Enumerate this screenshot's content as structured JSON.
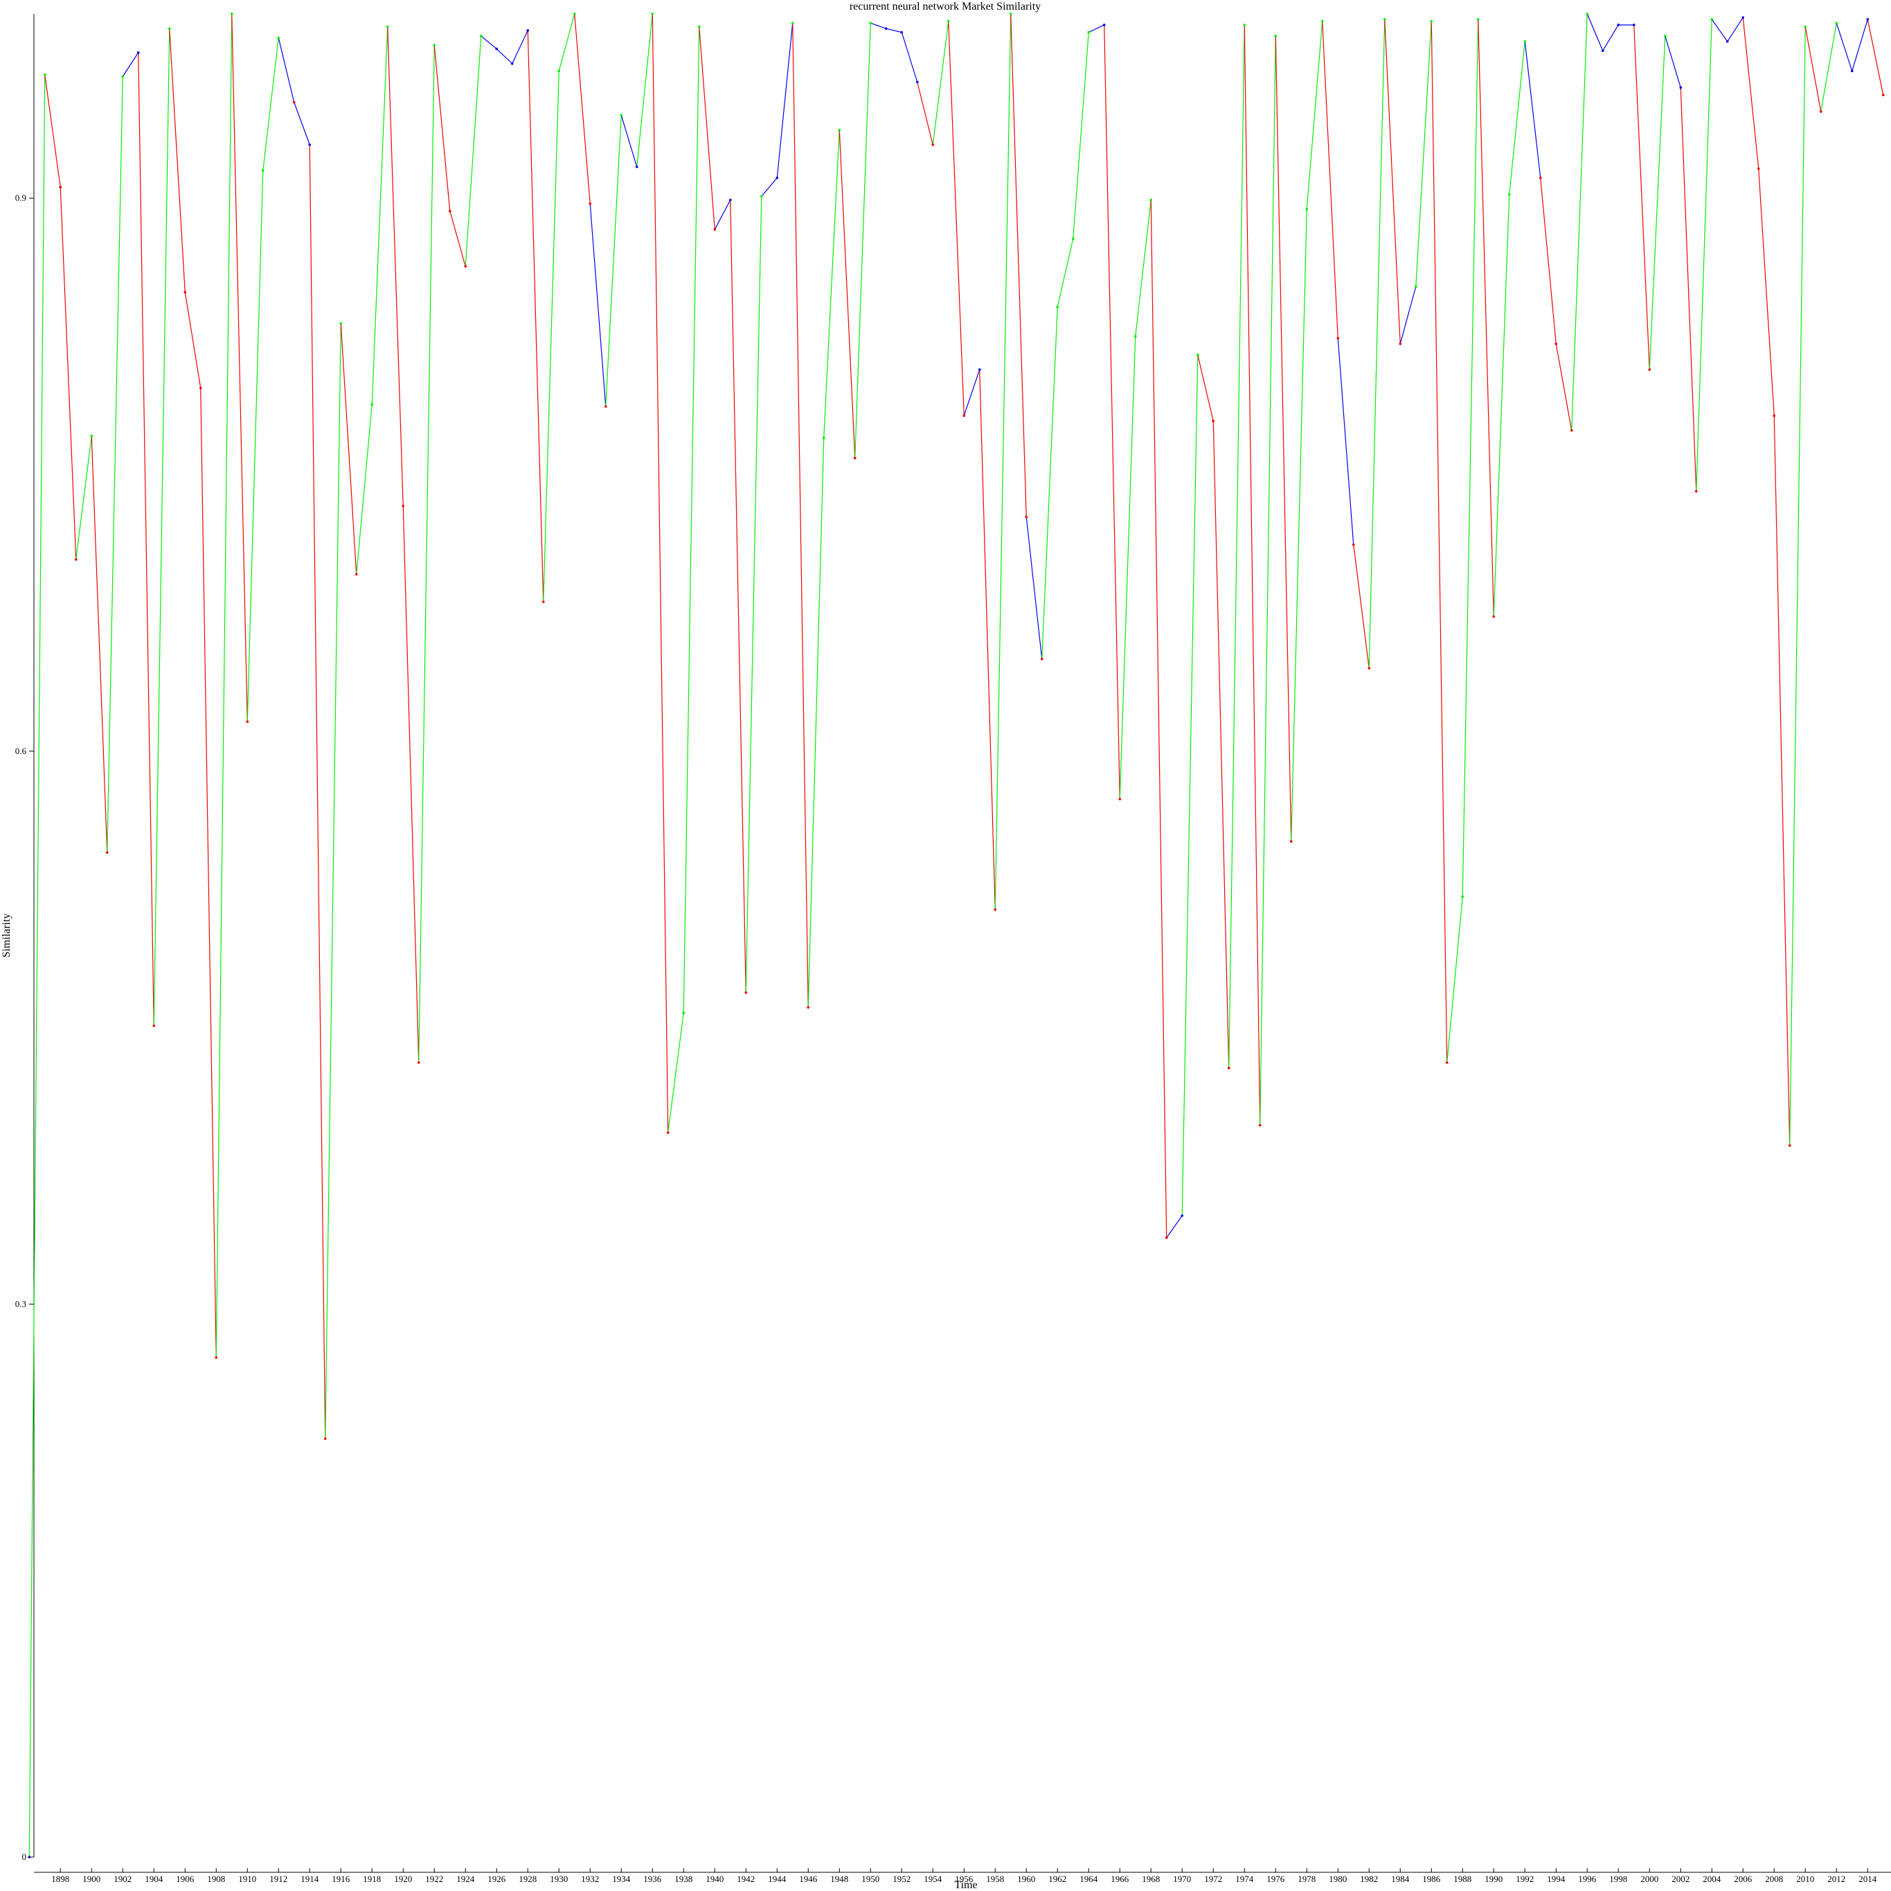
{
  "chart_data": {
    "type": "line",
    "title": "recurrent neural network Market Similarity",
    "xlabel": "Time",
    "ylabel": "Similarity",
    "xlim": [
      1895.9,
      2015.5
    ],
    "ylim": [
      0,
      1.0
    ],
    "x_ticks": [
      1898,
      1900,
      1902,
      1904,
      1906,
      1908,
      1910,
      1912,
      1914,
      1916,
      1918,
      1920,
      1922,
      1924,
      1926,
      1928,
      1930,
      1932,
      1934,
      1936,
      1938,
      1940,
      1942,
      1944,
      1946,
      1948,
      1950,
      1952,
      1954,
      1956,
      1958,
      1960,
      1962,
      1964,
      1966,
      1968,
      1970,
      1972,
      1974,
      1976,
      1978,
      1980,
      1982,
      1984,
      1986,
      1988,
      1990,
      1992,
      1994,
      1996,
      1998,
      2000,
      2002,
      2004,
      2006,
      2008,
      2010,
      2012,
      2014
    ],
    "y_ticks": [
      0,
      0.3,
      0.6,
      0.9
    ],
    "grid": false,
    "legend": "none",
    "segment_colors": {
      "up": "#00ee00",
      "down": "#ee0000",
      "flat": "#0000ee"
    },
    "x": [
      1896,
      1897,
      1898,
      1899,
      1900,
      1901,
      1902,
      1903,
      1904,
      1905,
      1906,
      1907,
      1908,
      1909,
      1910,
      1911,
      1912,
      1913,
      1914,
      1915,
      1916,
      1917,
      1918,
      1919,
      1920,
      1921,
      1922,
      1923,
      1924,
      1925,
      1926,
      1927,
      1928,
      1929,
      1930,
      1931,
      1932,
      1933,
      1934,
      1935,
      1936,
      1937,
      1938,
      1939,
      1940,
      1941,
      1942,
      1943,
      1944,
      1945,
      1946,
      1947,
      1948,
      1949,
      1950,
      1951,
      1952,
      1953,
      1954,
      1955,
      1956,
      1957,
      1958,
      1959,
      1960,
      1961,
      1962,
      1963,
      1964,
      1965,
      1966,
      1967,
      1968,
      1969,
      1970,
      1971,
      1972,
      1973,
      1974,
      1975,
      1976,
      1977,
      1978,
      1979,
      1980,
      1981,
      1982,
      1983,
      1984,
      1985,
      1986,
      1987,
      1988,
      1989,
      1990,
      1991,
      1992,
      1993,
      1994,
      1995,
      1996,
      1997,
      1998,
      1999,
      2000,
      2001,
      2002,
      2003,
      2004,
      2005,
      2006,
      2007,
      2008,
      2009,
      2010,
      2011,
      2012,
      2013,
      2014,
      2015
    ],
    "y": [
      0.0,
      0.967,
      0.906,
      0.704,
      0.771,
      0.545,
      0.966,
      0.979,
      0.451,
      0.992,
      0.849,
      0.797,
      0.271,
      1.0,
      0.616,
      0.915,
      0.987,
      0.952,
      0.929,
      0.227,
      0.832,
      0.696,
      0.788,
      0.993,
      0.733,
      0.431,
      0.983,
      0.893,
      0.863,
      0.988,
      0.981,
      0.973,
      0.991,
      0.681,
      0.969,
      1.0,
      0.897,
      0.787,
      0.945,
      0.917,
      1.0,
      0.393,
      0.458,
      0.993,
      0.883,
      0.899,
      0.469,
      0.901,
      0.911,
      0.995,
      0.461,
      0.77,
      0.937,
      0.759,
      0.995,
      0.992,
      0.99,
      0.963,
      0.929,
      0.996,
      0.782,
      0.807,
      0.514,
      1.0,
      0.727,
      0.65,
      0.841,
      0.878,
      0.99,
      0.994,
      0.574,
      0.825,
      0.899,
      0.336,
      0.348,
      0.815,
      0.779,
      0.428,
      0.994,
      0.397,
      0.988,
      0.551,
      0.894,
      0.996,
      0.824,
      0.712,
      0.645,
      0.997,
      0.821,
      0.852,
      0.996,
      0.431,
      0.521,
      0.997,
      0.673,
      0.902,
      0.985,
      0.911,
      0.821,
      0.774,
      1.0,
      0.98,
      0.994,
      0.994,
      0.807,
      0.988,
      0.96,
      0.741,
      0.997,
      0.985,
      0.998,
      0.916,
      0.782,
      0.386,
      0.993,
      0.947,
      0.995,
      0.969,
      0.997,
      0.956
    ]
  }
}
